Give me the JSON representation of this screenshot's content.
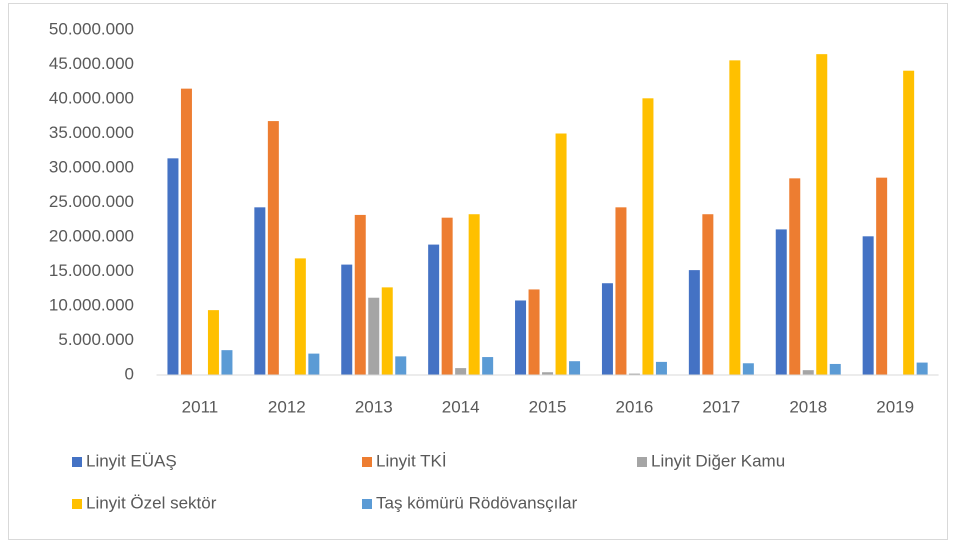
{
  "chart_data": {
    "type": "bar",
    "categories": [
      "2011",
      "2012",
      "2013",
      "2014",
      "2015",
      "2016",
      "2017",
      "2018",
      "2019"
    ],
    "series": [
      {
        "name": "Linyit EÜAŞ",
        "color": "#4472c4",
        "values": [
          31400000,
          24300000,
          16000000,
          18900000,
          10800000,
          13300000,
          15200000,
          21100000,
          20100000
        ]
      },
      {
        "name": "Linyit TKİ",
        "color": "#ed7d31",
        "values": [
          41500000,
          36800000,
          23200000,
          22800000,
          12400000,
          24300000,
          23300000,
          28500000,
          28600000
        ]
      },
      {
        "name": "Linyit Diğer Kamu",
        "color": "#a5a5a5",
        "values": [
          0,
          0,
          11200000,
          1000000,
          400000,
          200000,
          0,
          700000,
          0
        ]
      },
      {
        "name": "Linyit Özel sektör",
        "color": "#ffc000",
        "values": [
          9400000,
          16900000,
          12700000,
          23300000,
          35000000,
          40100000,
          45600000,
          46500000,
          44100000
        ]
      },
      {
        "name": "Taş kömürü Rödövansçılar",
        "color": "#5b9bd5",
        "values": [
          3600000,
          3100000,
          2700000,
          2600000,
          2000000,
          1900000,
          1700000,
          1600000,
          1800000
        ]
      }
    ],
    "ylim": [
      0,
      50000000
    ],
    "yticks": [
      0,
      {
        "value": 5000000,
        "label": "5.000.000"
      },
      {
        "value": 10000000,
        "label": "10.000.000"
      },
      {
        "value": 15000000,
        "label": "15.000.000"
      },
      {
        "value": 20000000,
        "label": "20.000.000"
      },
      {
        "value": 25000000,
        "label": "25.000.000"
      },
      {
        "value": 30000000,
        "label": "30.000.000"
      },
      {
        "value": 35000000,
        "label": "35.000.000"
      },
      {
        "value": 40000000,
        "label": "40.000.000"
      },
      {
        "value": 45000000,
        "label": "45.000.000"
      },
      {
        "value": 50000000,
        "label": "50.000.000"
      }
    ],
    "grid": false,
    "legend": "bottom"
  }
}
